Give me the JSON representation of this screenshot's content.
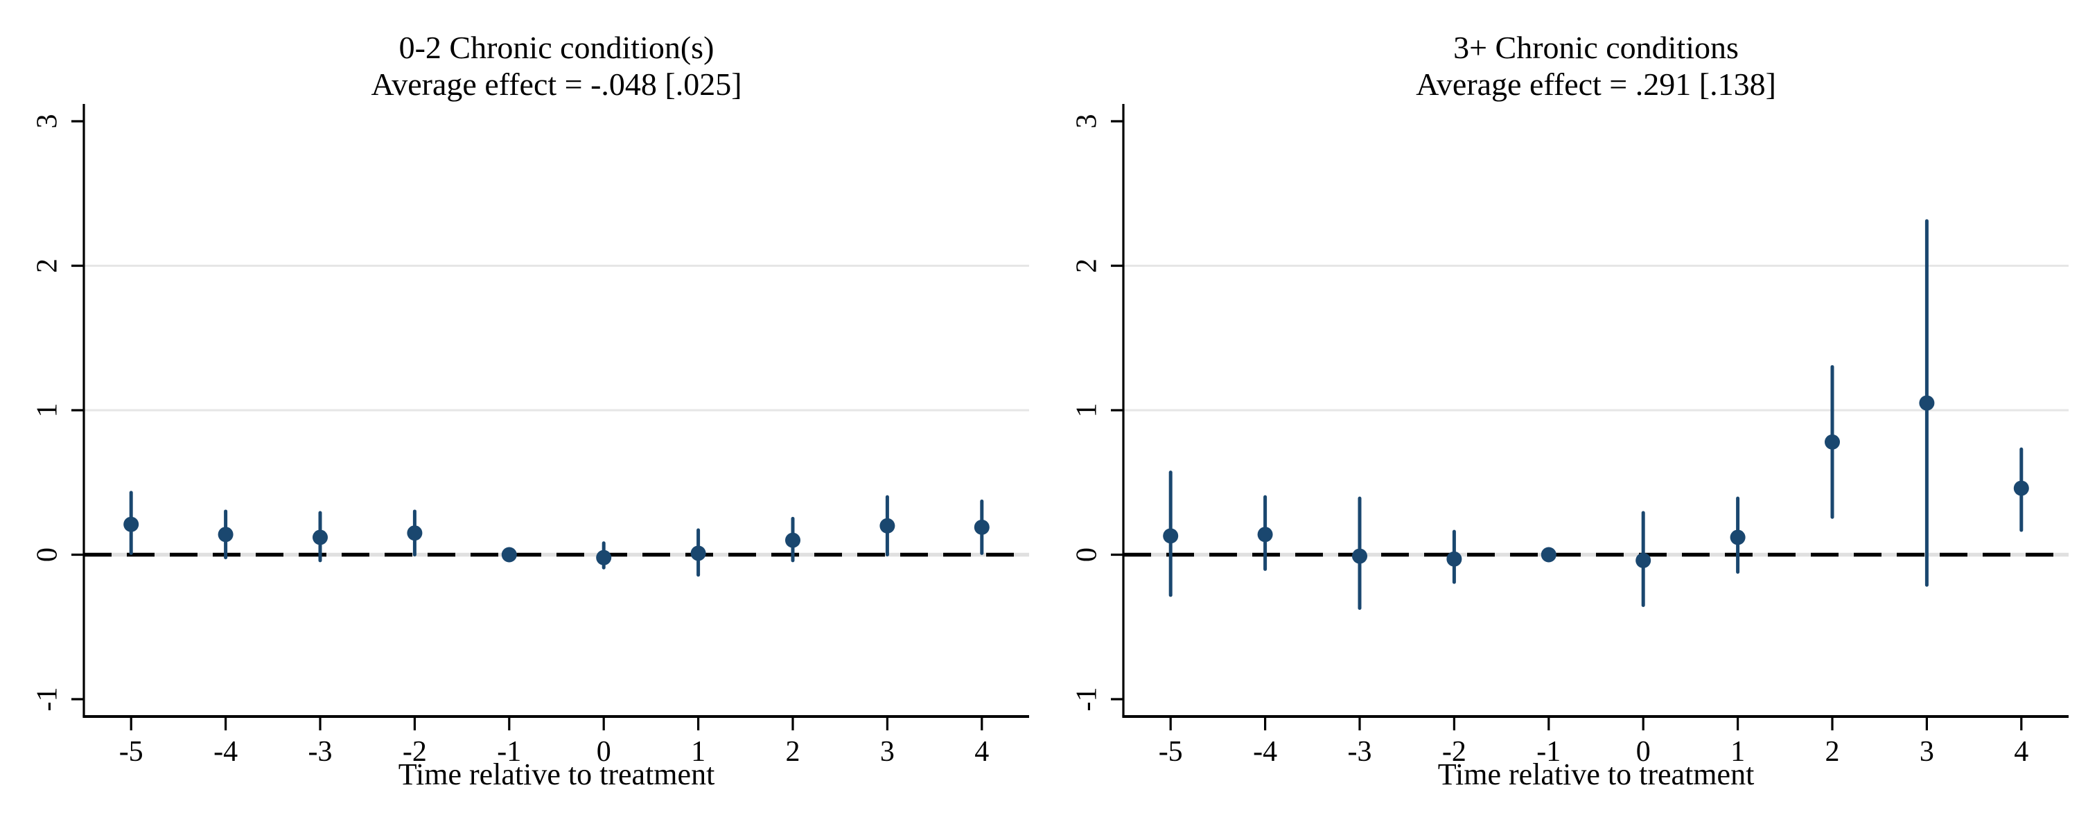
{
  "figure": {
    "background": "#ffffff",
    "text_color": "#000000",
    "axis_color": "#000000",
    "marker_color": "#1a476f",
    "ci_color": "#1a476f",
    "grid_color": "#e6e6e6",
    "zero_line_color": "#000000",
    "zero_line_gap_color": "#e0e0e0",
    "zero_line_style": "dashed"
  },
  "chart_data": [
    {
      "type": "scatter",
      "panel": "left",
      "title": "0-2 Chronic condition(s)",
      "subtitle": "Average effect = -.048 [.025]",
      "average_effect": -0.048,
      "average_effect_se": 0.025,
      "xlabel": "Time relative to treatment",
      "ylabel": "",
      "x": [
        -5,
        -4,
        -3,
        -2,
        -1,
        0,
        1,
        2,
        3,
        4
      ],
      "estimates": [
        0.21,
        0.14,
        0.12,
        0.15,
        0.0,
        -0.02,
        0.01,
        0.1,
        0.2,
        0.19
      ],
      "ci_low": [
        0.01,
        -0.02,
        -0.04,
        0.0,
        0.0,
        -0.09,
        -0.14,
        -0.04,
        0.0,
        0.01
      ],
      "ci_high": [
        0.43,
        0.3,
        0.29,
        0.3,
        0.0,
        0.08,
        0.17,
        0.25,
        0.4,
        0.37
      ],
      "xticks": [
        -5,
        -4,
        -3,
        -2,
        -1,
        0,
        1,
        2,
        3,
        4
      ],
      "yticks": [
        -1,
        0,
        1,
        2,
        3
      ],
      "ylim": [
        -1.12,
        3.12
      ],
      "grid_y": [
        1,
        2
      ],
      "zero_reference_line": 0,
      "legend": "none"
    },
    {
      "type": "scatter",
      "panel": "right",
      "title": "3+ Chronic conditions",
      "subtitle": "Average effect = .291 [.138]",
      "average_effect": 0.291,
      "average_effect_se": 0.138,
      "xlabel": "Time relative to treatment",
      "ylabel": "",
      "x": [
        -5,
        -4,
        -3,
        -2,
        -1,
        0,
        1,
        2,
        3,
        4
      ],
      "estimates": [
        0.13,
        0.14,
        -0.01,
        -0.03,
        0.0,
        -0.04,
        0.12,
        0.78,
        1.05,
        0.46
      ],
      "ci_low": [
        -0.28,
        -0.1,
        -0.37,
        -0.19,
        0.0,
        -0.35,
        -0.12,
        0.26,
        -0.21,
        0.17
      ],
      "ci_high": [
        0.57,
        0.4,
        0.39,
        0.16,
        0.0,
        0.29,
        0.39,
        1.3,
        2.31,
        0.73
      ],
      "xticks": [
        -5,
        -4,
        -3,
        -2,
        -1,
        0,
        1,
        2,
        3,
        4
      ],
      "yticks": [
        -1,
        0,
        1,
        2,
        3
      ],
      "ylim": [
        -1.12,
        3.12
      ],
      "grid_y": [
        1,
        2
      ],
      "zero_reference_line": 0,
      "legend": "none"
    }
  ]
}
